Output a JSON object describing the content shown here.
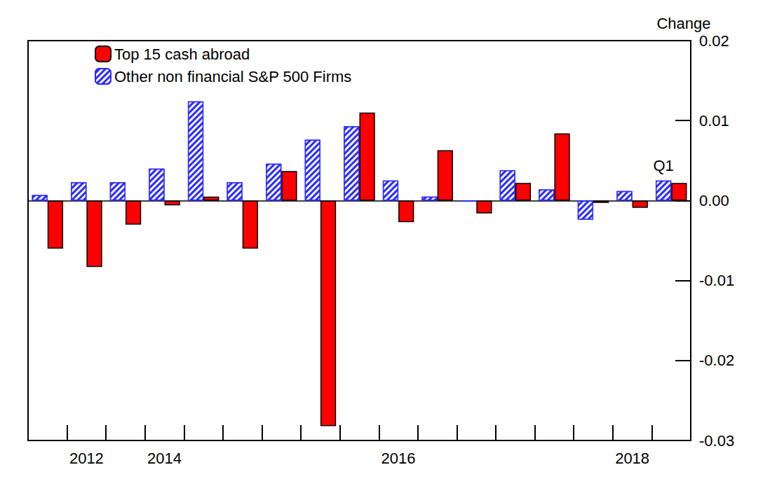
{
  "chart_data": {
    "type": "bar",
    "y_label": "Change",
    "categories": [
      null,
      "2012",
      null,
      "2014",
      null,
      null,
      null,
      null,
      null,
      "2016",
      null,
      null,
      null,
      null,
      null,
      "2018",
      null
    ],
    "series": [
      {
        "name": "Other non financial S&P 500 Firms",
        "color": "#2b2bff",
        "values": [
          0.0007,
          0.0023,
          0.0023,
          0.004,
          0.0124,
          0.0023,
          0.0046,
          0.0076,
          0.0093,
          0.0025,
          0.0005,
          -0.0001,
          0.0038,
          0.0014,
          -0.0024,
          0.0012,
          0.0025
        ]
      },
      {
        "name": "Top 15 cash abroad",
        "color": "#ff0000",
        "values": [
          -0.006,
          -0.0083,
          -0.003,
          -0.0006,
          0.0005,
          -0.006,
          0.0037,
          -0.0282,
          0.011,
          -0.0027,
          0.0063,
          -0.0016,
          0.0022,
          0.0084,
          -0.0003,
          -0.0009,
          0.0022
        ]
      }
    ],
    "annotations": [
      {
        "text": "Q1",
        "category_index": 16,
        "y": 0.0044
      }
    ],
    "ylim": [
      -0.03,
      0.02
    ],
    "yticks": [
      -0.03,
      -0.02,
      -0.01,
      {
        "value": 0,
        "label": "0.00"
      },
      0.01,
      0.02
    ],
    "grid": false,
    "legend": "upper left"
  }
}
